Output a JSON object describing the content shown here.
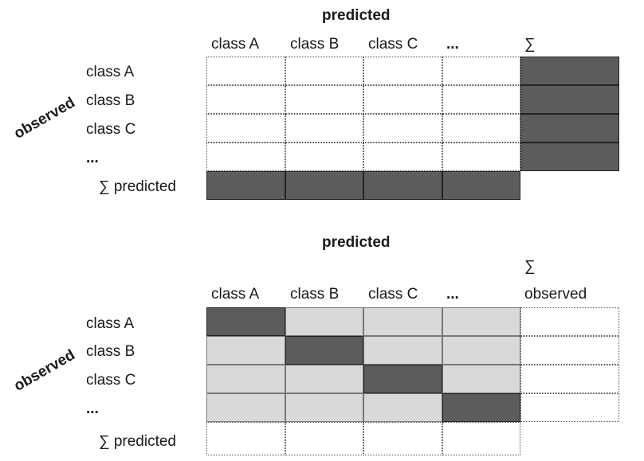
{
  "colors": {
    "dark": "#5c5c5c",
    "light": "#d9d9d9",
    "line": "#555555"
  },
  "top": {
    "title": "predicted",
    "axis_label": "observed",
    "col_headers": [
      "class A",
      "class B",
      "class C",
      "..."
    ],
    "sum_header": "∑",
    "row_labels": [
      "class A",
      "class B",
      "class C",
      "..."
    ],
    "total_row_label": "∑ predicted",
    "body_fill": "white",
    "sum_col_fill": "dark",
    "total_row_fill": "dark"
  },
  "bottom": {
    "title": "predicted",
    "axis_label": "observed",
    "col_headers": [
      "class A",
      "class B",
      "class C",
      "..."
    ],
    "sum_header_sym": "∑",
    "sum_header_word": "observed",
    "row_labels": [
      "class A",
      "class B",
      "class C",
      "..."
    ],
    "total_row_label": "∑ predicted",
    "body_fill": "light",
    "diagonal_fill": "dark"
  }
}
